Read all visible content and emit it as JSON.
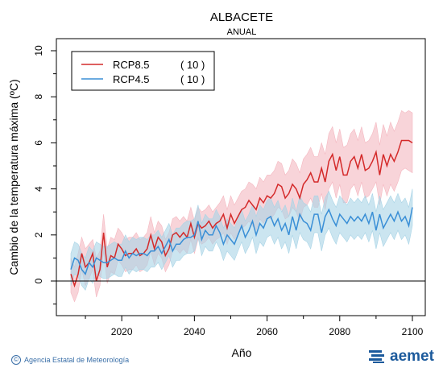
{
  "footer": {
    "agency": "Agencia Estatal de Meteorología",
    "copyright_symbol": "©",
    "brand": "aemet",
    "brand_icon": "aemet-logo-icon"
  },
  "colors": {
    "rcp85": "#d42a2a",
    "rcp85_band": "#f4b7c0",
    "rcp45": "#3a8fd6",
    "rcp45_band": "#a9d4e6"
  },
  "chart_data": {
    "type": "line",
    "title": "ALBACETE",
    "subtitle": "ANUAL",
    "xlabel": "Año",
    "ylabel": "Cambio de la temperatura máxima (ºC)",
    "xlim": [
      2006,
      2100
    ],
    "ylim": [
      -1.5,
      10
    ],
    "x_ticks": [
      2020,
      2040,
      2060,
      2080,
      2100
    ],
    "y_ticks": [
      0,
      2,
      4,
      6,
      8,
      10
    ],
    "zero_line": true,
    "legend": {
      "placement": "top-left",
      "entries": [
        {
          "name": "RCP8.5",
          "count": "( 10 )"
        },
        {
          "name": "RCP4.5",
          "count": "( 10 )"
        }
      ]
    },
    "x_start": 2006,
    "x_step": 1,
    "series": [
      {
        "name": "RCP8.5",
        "values": [
          0.3,
          -0.2,
          0.3,
          1.2,
          0.6,
          0.8,
          1.2,
          0.0,
          0.5,
          2.1,
          0.6,
          1.1,
          1.0,
          1.6,
          1.4,
          1.1,
          1.2,
          1.2,
          1.4,
          1.1,
          1.2,
          1.4,
          2.0,
          1.4,
          1.9,
          1.7,
          1.1,
          1.4,
          2.0,
          2.1,
          1.9,
          2.1,
          1.9,
          2.5,
          1.9,
          2.5,
          2.3,
          2.4,
          2.6,
          2.3,
          2.5,
          2.6,
          2.9,
          2.3,
          2.9,
          2.5,
          2.8,
          3.1,
          3.2,
          3.5,
          3.3,
          3.1,
          3.6,
          3.4,
          3.7,
          3.6,
          3.8,
          4.2,
          4.1,
          3.6,
          3.8,
          4.2,
          4.0,
          3.6,
          4.2,
          4.4,
          4.7,
          4.3,
          4.3,
          4.9,
          4.3,
          5.2,
          5.5,
          4.8,
          5.4,
          4.6,
          4.6,
          5.2,
          5.4,
          4.9,
          5.5,
          4.8,
          4.9,
          5.2,
          5.6,
          4.6,
          5.5,
          5.0,
          5.5,
          5.2,
          5.6,
          6.1,
          6.1,
          6.1,
          6.0
        ],
        "upper": [
          1.0,
          0.6,
          1.2,
          1.9,
          1.4,
          1.6,
          1.8,
          1.0,
          1.3,
          2.9,
          1.4,
          1.9,
          1.8,
          2.3,
          2.1,
          1.8,
          1.9,
          1.9,
          2.1,
          1.8,
          1.9,
          2.1,
          2.8,
          2.1,
          2.6,
          2.4,
          1.8,
          2.1,
          2.7,
          2.8,
          2.6,
          2.8,
          2.6,
          3.2,
          2.6,
          3.2,
          3.0,
          3.1,
          3.3,
          3.0,
          3.2,
          3.4,
          3.7,
          3.1,
          3.7,
          3.3,
          3.6,
          3.9,
          4.0,
          4.3,
          4.2,
          4.0,
          4.5,
          4.3,
          4.6,
          4.6,
          4.8,
          5.2,
          5.1,
          4.6,
          4.8,
          5.3,
          5.1,
          4.7,
          5.3,
          5.5,
          5.8,
          5.4,
          5.4,
          6.0,
          5.5,
          6.4,
          6.7,
          6.0,
          6.6,
          5.8,
          5.9,
          6.4,
          6.6,
          6.1,
          6.7,
          6.0,
          6.1,
          6.4,
          6.9,
          5.9,
          6.8,
          6.3,
          6.9,
          6.5,
          6.9,
          7.4,
          7.3,
          7.4,
          7.3
        ],
        "lower": [
          -0.5,
          -0.9,
          -0.5,
          0.5,
          -0.2,
          0.1,
          0.5,
          -0.7,
          -0.2,
          1.3,
          -0.1,
          0.4,
          0.3,
          0.9,
          0.7,
          0.4,
          0.5,
          0.5,
          0.7,
          0.4,
          0.5,
          0.7,
          1.3,
          0.7,
          1.2,
          1.0,
          0.4,
          0.7,
          1.3,
          1.4,
          1.2,
          1.4,
          1.2,
          1.8,
          1.2,
          1.8,
          1.6,
          1.7,
          1.9,
          1.6,
          1.8,
          1.9,
          2.1,
          1.6,
          2.1,
          1.8,
          2.0,
          2.3,
          2.4,
          2.6,
          2.4,
          2.2,
          2.7,
          2.5,
          2.8,
          2.7,
          2.9,
          3.2,
          3.1,
          2.7,
          2.8,
          3.2,
          3.0,
          2.6,
          3.2,
          3.3,
          3.6,
          3.2,
          3.2,
          3.8,
          3.1,
          4.0,
          4.3,
          3.6,
          4.2,
          3.4,
          3.4,
          4.0,
          4.2,
          3.7,
          4.3,
          3.6,
          3.7,
          4.0,
          4.3,
          3.3,
          4.2,
          3.7,
          4.2,
          3.9,
          4.3,
          4.8,
          4.9,
          4.8,
          4.7
        ]
      },
      {
        "name": "RCP4.5",
        "values": [
          0.5,
          1.0,
          0.9,
          0.5,
          0.3,
          0.8,
          0.6,
          1.0,
          0.9,
          0.8,
          0.8,
          0.9,
          1.0,
          0.9,
          0.9,
          1.3,
          1.0,
          1.2,
          1.1,
          1.2,
          1.2,
          1.1,
          1.3,
          1.3,
          1.5,
          1.2,
          1.5,
          1.8,
          1.3,
          1.6,
          1.6,
          1.8,
          1.9,
          1.9,
          2.0,
          2.6,
          1.8,
          2.2,
          2.0,
          2.0,
          2.4,
          2.1,
          1.6,
          2.0,
          1.8,
          1.6,
          2.0,
          2.4,
          1.9,
          2.2,
          2.6,
          2.0,
          2.5,
          2.3,
          2.7,
          2.8,
          2.4,
          2.7,
          2.2,
          2.5,
          2.0,
          2.8,
          2.2,
          2.9,
          2.6,
          2.5,
          2.2,
          2.9,
          2.9,
          2.1,
          2.8,
          3.1,
          2.7,
          2.4,
          2.9,
          2.7,
          2.5,
          2.8,
          2.6,
          2.8,
          2.6,
          2.9,
          2.5,
          3.0,
          2.2,
          2.9,
          2.3,
          2.6,
          2.9,
          2.6,
          3.0,
          2.6,
          2.8,
          2.4,
          3.2
        ],
        "upper": [
          1.2,
          1.7,
          1.6,
          1.2,
          1.0,
          1.5,
          1.3,
          1.7,
          1.6,
          1.5,
          1.5,
          1.6,
          1.7,
          1.6,
          1.6,
          2.0,
          1.7,
          1.9,
          1.8,
          1.9,
          1.9,
          1.8,
          2.0,
          2.0,
          2.2,
          1.9,
          2.2,
          2.5,
          2.0,
          2.3,
          2.3,
          2.5,
          2.6,
          2.6,
          2.7,
          3.3,
          2.5,
          2.9,
          2.7,
          2.7,
          3.1,
          2.8,
          2.3,
          2.7,
          2.5,
          2.3,
          2.7,
          3.1,
          2.6,
          2.9,
          3.3,
          2.8,
          3.3,
          3.1,
          3.5,
          3.6,
          3.2,
          3.5,
          3.0,
          3.3,
          2.8,
          3.6,
          3.0,
          3.7,
          3.4,
          3.3,
          3.0,
          3.7,
          3.7,
          2.9,
          3.6,
          3.9,
          3.5,
          3.2,
          3.7,
          3.5,
          3.3,
          3.6,
          3.4,
          3.6,
          3.4,
          3.7,
          3.3,
          3.8,
          3.0,
          3.7,
          3.1,
          3.4,
          3.7,
          3.4,
          3.8,
          3.4,
          3.6,
          3.2,
          4.0
        ],
        "lower": [
          -0.2,
          0.3,
          0.2,
          -0.2,
          -0.4,
          0.1,
          -0.1,
          0.3,
          0.2,
          0.1,
          0.1,
          0.2,
          0.3,
          0.2,
          0.2,
          0.6,
          0.3,
          0.5,
          0.4,
          0.5,
          0.5,
          0.4,
          0.6,
          0.6,
          0.8,
          0.5,
          0.8,
          1.1,
          0.6,
          0.9,
          0.9,
          1.1,
          1.2,
          1.2,
          1.3,
          1.9,
          1.1,
          1.5,
          1.3,
          1.3,
          1.7,
          1.4,
          0.9,
          1.3,
          1.1,
          0.9,
          1.3,
          1.7,
          1.2,
          1.5,
          1.9,
          1.2,
          1.7,
          1.5,
          1.9,
          2.0,
          1.6,
          1.9,
          1.4,
          1.7,
          1.2,
          2.0,
          1.4,
          2.1,
          1.8,
          1.7,
          1.4,
          2.1,
          2.1,
          1.3,
          2.0,
          2.3,
          1.9,
          1.6,
          2.1,
          1.9,
          1.7,
          2.0,
          1.8,
          2.0,
          1.8,
          2.1,
          1.7,
          2.2,
          1.4,
          2.1,
          1.5,
          1.8,
          2.1,
          1.8,
          2.2,
          1.8,
          2.0,
          1.6,
          2.4
        ]
      }
    ]
  }
}
